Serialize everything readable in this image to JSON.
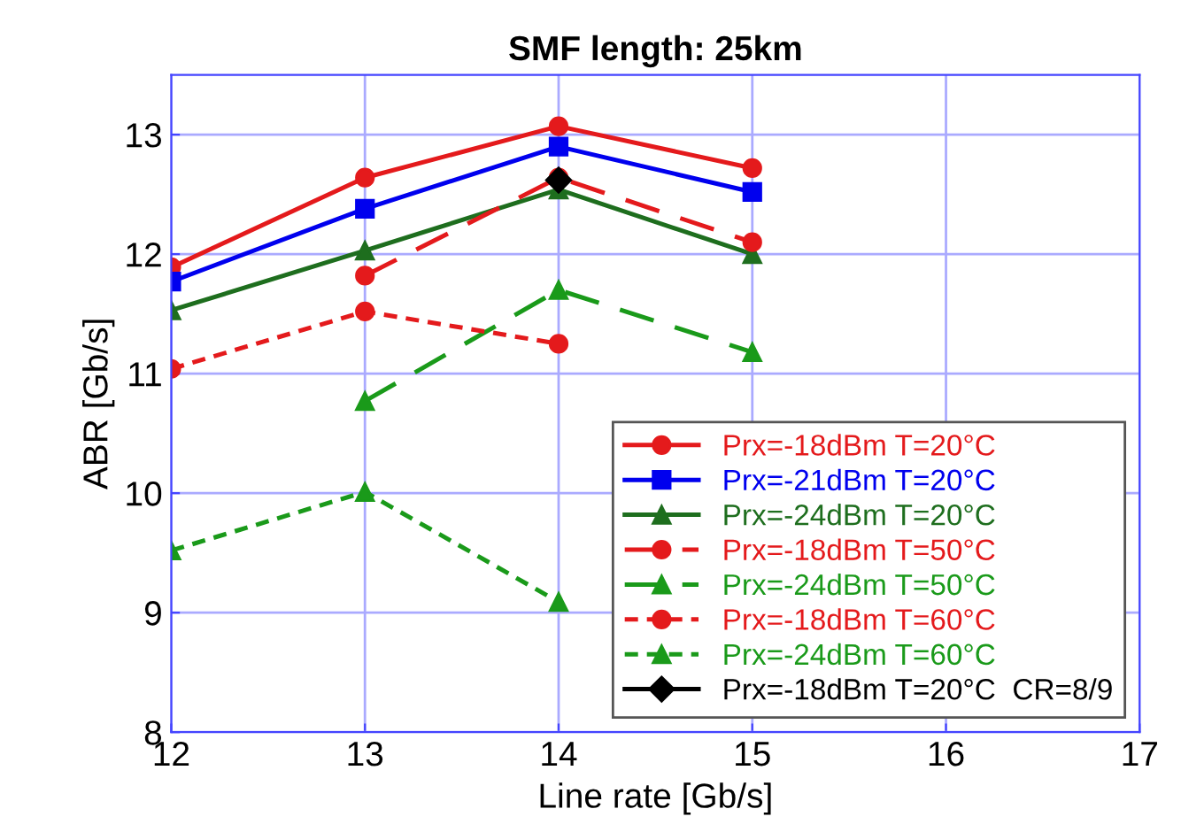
{
  "chart_data": {
    "type": "line",
    "title": "SMF length: 25km",
    "xlabel": "Line rate [Gb/s]",
    "ylabel": "ABR [Gb/s]",
    "xlim": [
      12,
      17
    ],
    "xticks": [
      12,
      13,
      14,
      15,
      16,
      17
    ],
    "ylim": [
      8,
      13.5
    ],
    "yticks": [
      8,
      9,
      10,
      11,
      12,
      13
    ],
    "grid": true,
    "legend": "bottom right",
    "series": [
      {
        "name": "Prx=-18dBm T=20°C",
        "color": "#e41a1c",
        "x": [
          12,
          13,
          14,
          15
        ],
        "values": [
          11.89,
          12.64,
          13.07,
          12.72
        ],
        "marker": "circle",
        "line_style": "solid"
      },
      {
        "name": "Prx=-21dBm T=20°C",
        "color": "#0000ee",
        "x": [
          12,
          13,
          14,
          15
        ],
        "values": [
          11.77,
          12.38,
          12.9,
          12.52
        ],
        "marker": "square",
        "line_style": "solid"
      },
      {
        "name": "Prx=-24dBm T=20°C",
        "color": "#1e6e1e",
        "x": [
          12,
          13,
          14,
          15
        ],
        "values": [
          11.53,
          12.03,
          12.54,
          12.0
        ],
        "marker": "triangle",
        "line_style": "solid"
      },
      {
        "name": "Prx=-18dBm T=50°C",
        "color": "#e41a1c",
        "x": [
          13,
          14,
          15
        ],
        "values": [
          11.82,
          12.64,
          12.1
        ],
        "marker": "circle",
        "line_style": "dashed"
      },
      {
        "name": "Prx=-24dBm T=50°C",
        "color": "#1a9a1a",
        "x": [
          13,
          14,
          15
        ],
        "values": [
          10.77,
          11.7,
          11.18
        ],
        "marker": "triangle",
        "line_style": "dashed"
      },
      {
        "name": "Prx=-18dBm T=60°C",
        "color": "#e41a1c",
        "x": [
          12,
          13,
          14
        ],
        "values": [
          11.04,
          11.52,
          11.25
        ],
        "marker": "circle",
        "line_style": "dotted"
      },
      {
        "name": "Prx=-24dBm T=60°C",
        "color": "#1a9a1a",
        "x": [
          12,
          13,
          14
        ],
        "values": [
          9.52,
          10.01,
          9.09
        ],
        "marker": "triangle",
        "line_style": "dotted"
      },
      {
        "name": "Prx=-18dBm T=20°C  CR=8/9",
        "color": "#000000",
        "x": [
          14
        ],
        "values": [
          12.62
        ],
        "marker": "diamond",
        "line_style": "solid"
      }
    ]
  }
}
